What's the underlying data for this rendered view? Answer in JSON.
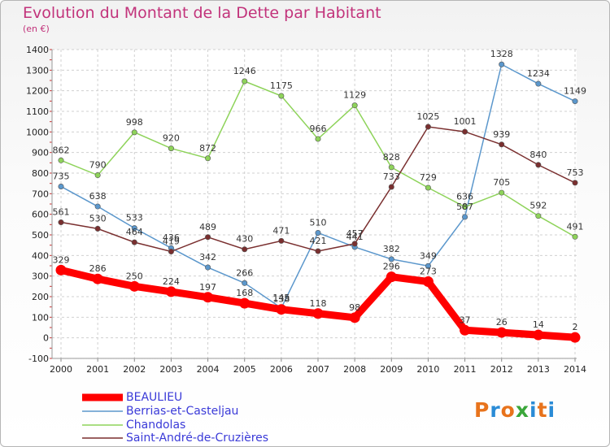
{
  "title": "Evolution du Montant de la Dette par Habitant",
  "unit": "(en €)",
  "logo": {
    "text": "Proxiti",
    "colors": [
      "#e8731c",
      "#2a8bd6",
      "#e8731c",
      "#3aa63a",
      "#2a8bd6",
      "#e8731c",
      "#2a8bd6"
    ]
  },
  "chart_data": {
    "type": "line",
    "x": [
      2000,
      2001,
      2002,
      2003,
      2004,
      2005,
      2006,
      2007,
      2008,
      2009,
      2010,
      2011,
      2012,
      2013,
      2014
    ],
    "ylim": [
      -100,
      1400
    ],
    "yticks": [
      -100,
      0,
      100,
      200,
      300,
      400,
      500,
      600,
      700,
      800,
      900,
      1000,
      1100,
      1200,
      1300,
      1400
    ],
    "grid": true,
    "legend": "bottom-left",
    "series": [
      {
        "name": "BEAULIEU",
        "color": "#ff0000",
        "emphasis": true,
        "values": [
          329,
          286,
          250,
          224,
          197,
          168,
          138,
          118,
          98,
          296,
          273,
          37,
          26,
          14,
          2
        ]
      },
      {
        "name": "Berrias-et-Casteljau",
        "color": "#5b97cc",
        "values": [
          735,
          638,
          533,
          436,
          342,
          266,
          145,
          510,
          441,
          382,
          349,
          587,
          1328,
          1234,
          1149
        ]
      },
      {
        "name": "Chandolas",
        "color": "#8ed35a",
        "values": [
          862,
          790,
          998,
          920,
          872,
          1246,
          1175,
          966,
          1129,
          828,
          729,
          636,
          705,
          592,
          491
        ]
      },
      {
        "name": "Saint-André-de-Cruzières",
        "color": "#7a2f2f",
        "values": [
          561,
          530,
          464,
          419,
          489,
          430,
          471,
          421,
          457,
          733,
          1025,
          1001,
          939,
          840,
          753
        ]
      }
    ]
  }
}
